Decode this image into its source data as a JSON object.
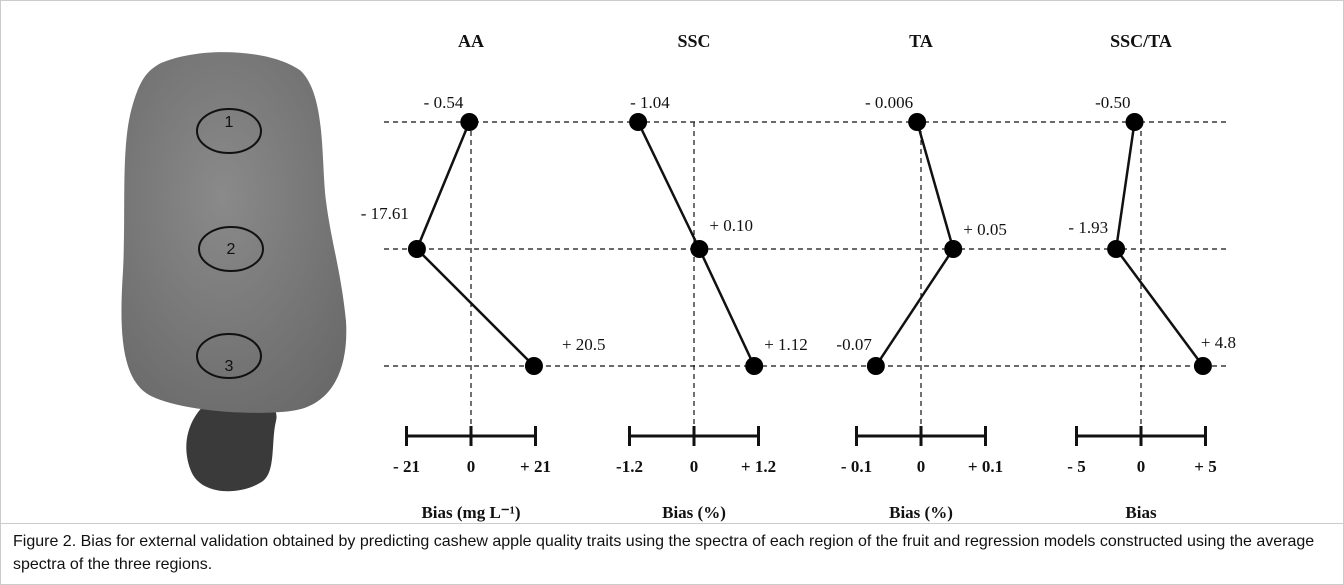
{
  "chart_data": [
    {
      "type": "line",
      "title": "AA",
      "xlabel": "Bias  (mg L⁻¹)",
      "values": [
        -0.54,
        -17.61,
        20.5
      ],
      "value_labels": [
        "- 0.54",
        "- 17.61",
        "+ 20.5"
      ],
      "xlim": [
        -21,
        21
      ],
      "xticks": [
        {
          "value": -21,
          "label": "- 21"
        },
        0,
        {
          "value": 21,
          "label": "+ 21"
        }
      ]
    },
    {
      "type": "line",
      "title": "SSC",
      "xlabel": "Bias  (%)",
      "values": [
        -1.04,
        0.1,
        1.12
      ],
      "value_labels": [
        "- 1.04",
        "+ 0.10",
        "+ 1.12"
      ],
      "xlim": [
        -1.2,
        1.2
      ],
      "xticks": [
        {
          "value": -1.2,
          "label": "-1.2"
        },
        0,
        {
          "value": 1.2,
          "label": "+ 1.2"
        }
      ]
    },
    {
      "type": "line",
      "title": "TA",
      "xlabel": "Bias (%)",
      "values": [
        -0.006,
        0.05,
        -0.07
      ],
      "value_labels": [
        "- 0.006",
        "+ 0.05",
        "-0.07"
      ],
      "xlim": [
        -0.1,
        0.1
      ],
      "xticks": [
        {
          "value": -0.1,
          "label": "- 0.1"
        },
        0,
        {
          "value": 0.1,
          "label": "+ 0.1"
        }
      ]
    },
    {
      "type": "line",
      "title": "SSC/TA",
      "xlabel": "Bias",
      "values": [
        -0.5,
        -1.93,
        4.8
      ],
      "value_labels": [
        "-0.50",
        "- 1.93",
        "+ 4.8"
      ],
      "xlim": [
        -5,
        5
      ],
      "xticks": [
        {
          "value": -5,
          "label": "- 5"
        },
        0,
        {
          "value": 5,
          "label": "+ 5"
        }
      ]
    }
  ],
  "regions": [
    "1",
    "2",
    "3"
  ],
  "caption": "Figure 2. Bias for external validation obtained by predicting cashew apple quality traits using the spectra of each region of the fruit and regression models constructed using the average spectra of the three regions."
}
